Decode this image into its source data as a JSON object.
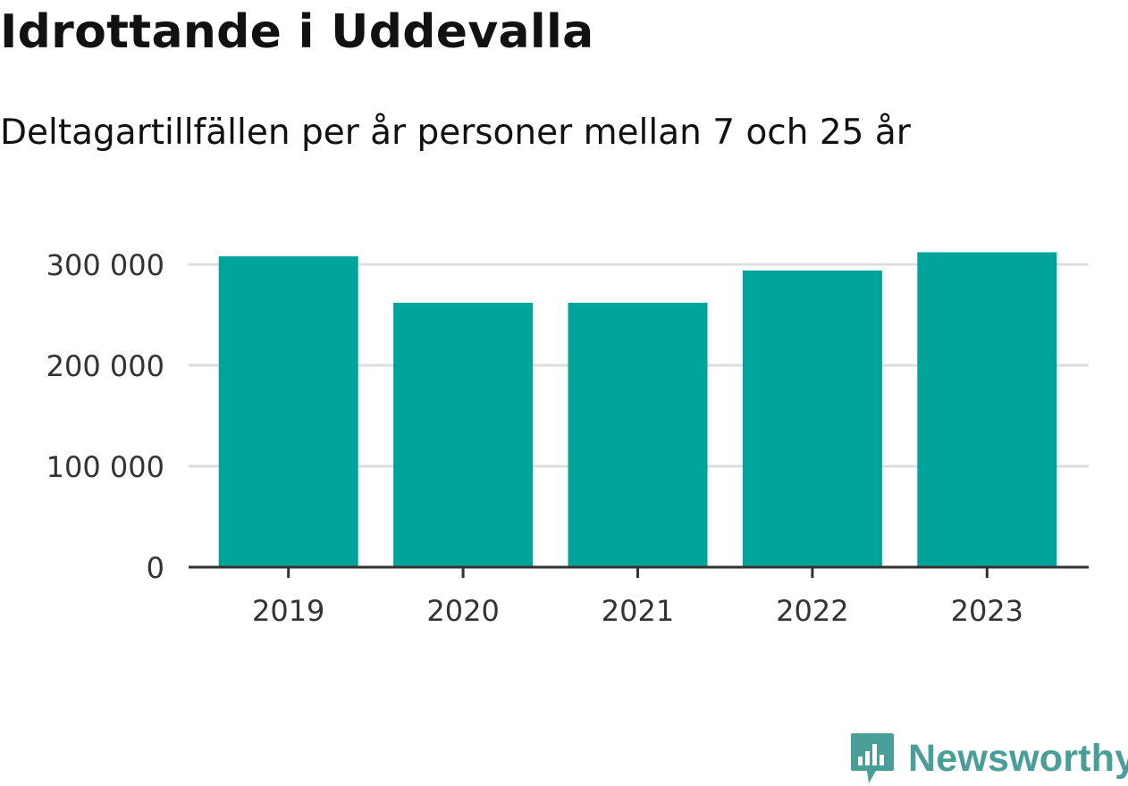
{
  "header": {
    "title": "Idrottande i Uddevalla",
    "subtitle": "Deltagartillfällen per år personer mellan 7 och 25 år"
  },
  "brand": {
    "name": "Newsworthy",
    "icon": "newsworthy-logo-icon",
    "color": "#4a9e98"
  },
  "chart_data": {
    "type": "bar",
    "categories": [
      "2019",
      "2020",
      "2021",
      "2022",
      "2023"
    ],
    "values": [
      308000,
      262000,
      262000,
      294000,
      312000
    ],
    "ylim": [
      0,
      300000
    ],
    "yticks": [
      0,
      100000,
      200000,
      300000
    ],
    "ytick_labels": [
      "0",
      "100 000",
      "200 000",
      "300 000"
    ],
    "grid": true,
    "bar_color": "#00a49a",
    "grid_color": "#dddddd",
    "axis_color": "#333333"
  }
}
